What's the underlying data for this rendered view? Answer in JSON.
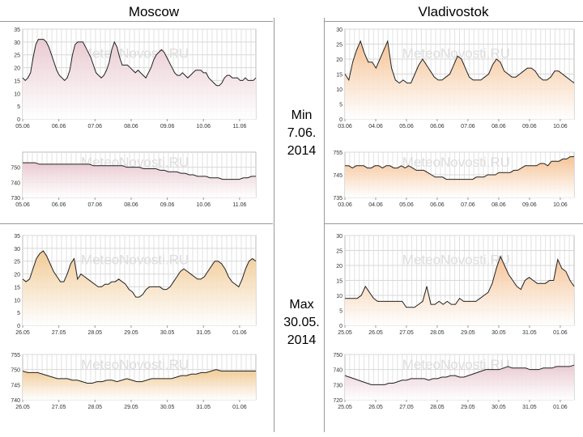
{
  "titles": {
    "left": "Moscow",
    "right": "Vladivostok"
  },
  "labels": {
    "min": [
      "Min",
      "7.06.",
      "2014"
    ],
    "max": [
      "Max",
      "30.05.",
      "2014"
    ]
  },
  "watermark": "MeteoNovosti.RU",
  "colors": {
    "warm": "#f0c890",
    "pink": "#e8c8d0",
    "orange": "#f5c090",
    "line": "#222222"
  },
  "chart_data": [
    {
      "id": "moscow-min-temp",
      "type": "area",
      "title": "",
      "xlabel": "",
      "ylabel": "",
      "ylim": [
        0,
        35
      ],
      "yticks": [
        0,
        5,
        10,
        15,
        20,
        25,
        30,
        35
      ],
      "xticks": [
        "05.06",
        "06.06",
        "07.06",
        "08.06",
        "09.06",
        "10.06",
        "11.06"
      ],
      "fill": "pink",
      "values": [
        16,
        15,
        16,
        18,
        24,
        29,
        31,
        31,
        31,
        30,
        28,
        25,
        22,
        19,
        17,
        16,
        15,
        16,
        19,
        25,
        29,
        30,
        30,
        30,
        28,
        26,
        24,
        21,
        18,
        17,
        16,
        17,
        19,
        22,
        27,
        30,
        28,
        24,
        21,
        21,
        21,
        20,
        19,
        18,
        19,
        18,
        17,
        16,
        18,
        20,
        23,
        25,
        26,
        27,
        26,
        24,
        22,
        20,
        18,
        17,
        17,
        18,
        17,
        16,
        17,
        18,
        19,
        19,
        19,
        18,
        18,
        16,
        15,
        14,
        13,
        13,
        14,
        16,
        17,
        17,
        16,
        16,
        16,
        15,
        15,
        16,
        15,
        15,
        15,
        16
      ]
    },
    {
      "id": "moscow-min-pressure",
      "type": "area",
      "title": "",
      "xlabel": "",
      "ylabel": "",
      "ylim": [
        730,
        760
      ],
      "yticks": [
        730,
        740,
        750
      ],
      "xticks": [
        "05.06",
        "06.06",
        "07.06",
        "08.06",
        "09.06",
        "10.06",
        "11.06"
      ],
      "fill": "pink",
      "values": [
        753,
        753,
        753,
        753,
        752,
        752,
        752,
        752,
        752,
        752,
        752,
        752,
        752,
        752,
        752,
        752,
        752,
        751,
        751,
        751,
        751,
        751,
        751,
        751,
        751,
        750,
        750,
        750,
        750,
        749,
        749,
        749,
        749,
        748,
        748,
        747,
        747,
        747,
        746,
        746,
        745,
        745,
        744,
        744,
        744,
        743,
        743,
        743,
        742,
        742,
        742,
        742,
        742,
        743,
        743,
        744,
        744
      ]
    },
    {
      "id": "vladivostok-min-temp",
      "type": "area",
      "title": "",
      "xlabel": "",
      "ylabel": "",
      "ylim": [
        0,
        30
      ],
      "yticks": [
        0,
        5,
        10,
        15,
        20,
        25,
        30
      ],
      "xticks": [
        "03.06",
        "04.06",
        "05.06",
        "06.06",
        "07.06",
        "08.06",
        "09.06",
        "10.06"
      ],
      "fill": "orange",
      "values": [
        15,
        13,
        19,
        23,
        26,
        22,
        19,
        19,
        17,
        20,
        23,
        26,
        17,
        13,
        12,
        13,
        12,
        12,
        15,
        18,
        20,
        18,
        16,
        14,
        13,
        13,
        14,
        15,
        18,
        21,
        20,
        17,
        14,
        13,
        13,
        13,
        14,
        15,
        18,
        20,
        19,
        16,
        15,
        14,
        14,
        15,
        16,
        17,
        17,
        16,
        14,
        13,
        13,
        14,
        16,
        16,
        15,
        14,
        13,
        12
      ]
    },
    {
      "id": "vladivostok-min-pressure",
      "type": "area",
      "title": "",
      "xlabel": "",
      "ylabel": "",
      "ylim": [
        735,
        755
      ],
      "yticks": [
        735,
        745,
        755
      ],
      "xticks": [
        "03.06",
        "04.06",
        "05.06",
        "06.06",
        "07.06",
        "08.06",
        "09.06",
        "10.06"
      ],
      "fill": "orange",
      "values": [
        749,
        749,
        748,
        749,
        749,
        749,
        748,
        748,
        749,
        749,
        748,
        749,
        749,
        748,
        748,
        749,
        748,
        749,
        748,
        747,
        747,
        747,
        746,
        745,
        744,
        744,
        744,
        743,
        743,
        743,
        743,
        743,
        743,
        743,
        743,
        744,
        744,
        744,
        745,
        745,
        745,
        746,
        746,
        746,
        746,
        747,
        747,
        748,
        749,
        749,
        749,
        749,
        750,
        750,
        749,
        751,
        751,
        751,
        752,
        752,
        753,
        753
      ]
    },
    {
      "id": "moscow-max-temp",
      "type": "area",
      "title": "",
      "xlabel": "",
      "ylabel": "",
      "ylim": [
        0,
        35
      ],
      "yticks": [
        0,
        5,
        10,
        15,
        20,
        25,
        30,
        35
      ],
      "xticks": [
        "26.05",
        "27.05",
        "28.05",
        "29.05",
        "30.05",
        "31.05",
        "01.06"
      ],
      "fill": "warm",
      "values": [
        18,
        17,
        18,
        22,
        26,
        28,
        29,
        27,
        24,
        21,
        19,
        17,
        17,
        20,
        24,
        26,
        18,
        20,
        19,
        18,
        17,
        16,
        15,
        15,
        16,
        16,
        17,
        17,
        18,
        17,
        16,
        14,
        13,
        11,
        11,
        12,
        14,
        15,
        15,
        15,
        15,
        14,
        14,
        15,
        17,
        19,
        21,
        22,
        21,
        20,
        19,
        18,
        18,
        19,
        21,
        23,
        25,
        25,
        24,
        22,
        19,
        17,
        16,
        15,
        18,
        22,
        25,
        26,
        25
      ]
    },
    {
      "id": "moscow-max-pressure",
      "type": "area",
      "title": "",
      "xlabel": "",
      "ylabel": "",
      "ylim": [
        740,
        755
      ],
      "yticks": [
        740,
        745,
        750,
        755
      ],
      "xticks": [
        "26.05",
        "27.05",
        "28.05",
        "29.05",
        "30.05",
        "31.05",
        "01.06"
      ],
      "fill": "warm",
      "values": [
        749.5,
        749,
        749,
        749,
        748.5,
        748,
        747.5,
        747,
        747,
        747,
        746.5,
        746.5,
        746,
        745.5,
        745.5,
        746,
        746,
        746.5,
        746.5,
        746,
        746.5,
        747,
        746.5,
        746,
        746,
        746.5,
        747,
        747,
        747,
        747,
        747,
        747.5,
        748,
        748,
        748.5,
        748.5,
        749,
        749,
        749.5,
        750,
        749.5,
        749.5,
        749.5,
        749.5,
        749.5,
        749.5,
        749.5,
        749.5
      ]
    },
    {
      "id": "vladivostok-max-temp",
      "type": "area",
      "title": "",
      "xlabel": "",
      "ylabel": "",
      "ylim": [
        0,
        30
      ],
      "yticks": [
        0,
        5,
        10,
        15,
        20,
        25,
        30
      ],
      "xticks": [
        "25.05",
        "26.05",
        "27.05",
        "28.05",
        "29.05",
        "30.05",
        "31.05",
        "01.06"
      ],
      "fill": "orange",
      "values": [
        9,
        9,
        9,
        9,
        10,
        13,
        11,
        9,
        8,
        8,
        8,
        8,
        8,
        8,
        8,
        6,
        6,
        6,
        7,
        8,
        13,
        7,
        7,
        8,
        7,
        8,
        7,
        7,
        9,
        8,
        8,
        8,
        8,
        9,
        10,
        11,
        14,
        19,
        23,
        20,
        17,
        15,
        13,
        12,
        15,
        16,
        15,
        14,
        14,
        14,
        15,
        15,
        22,
        19,
        18,
        15,
        13
      ]
    },
    {
      "id": "vladivostok-max-pressure",
      "type": "area",
      "title": "",
      "xlabel": "",
      "ylabel": "",
      "ylim": [
        720,
        750
      ],
      "yticks": [
        720,
        730,
        740,
        750
      ],
      "xticks": [
        "25.05",
        "26.05",
        "27.05",
        "28.05",
        "29.05",
        "30.05",
        "31.05",
        "01.06"
      ],
      "fill": "pink",
      "values": [
        736,
        735,
        734,
        733,
        732,
        731,
        730,
        730,
        730,
        730,
        731,
        731,
        732,
        733,
        733,
        734,
        734,
        734,
        734,
        733,
        734,
        734,
        735,
        735,
        736,
        736,
        735,
        735,
        736,
        737,
        738,
        739,
        740,
        740,
        740,
        740,
        741,
        742,
        741,
        741,
        741,
        741,
        740,
        740,
        740,
        741,
        741,
        741,
        742,
        742,
        742,
        742,
        743
      ]
    }
  ]
}
